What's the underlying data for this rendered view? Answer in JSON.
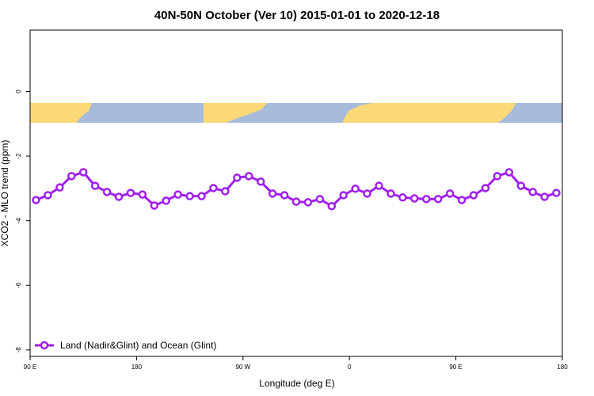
{
  "chart_data": {
    "type": "line",
    "title": "40N-50N October (Ver 10)   2015-01-01 to 2020-12-18",
    "x_label": "Longitude (deg E)",
    "y_label": "XCO2 - MLO trend (ppm)",
    "xlim": [
      90,
      540
    ],
    "xticks": [
      {
        "value": 90,
        "label": "90 E"
      },
      180,
      {
        "value": 270,
        "label": "90 W"
      },
      {
        "value": 360,
        "label": "0"
      },
      {
        "value": 450,
        "label": "90 E"
      },
      {
        "value": 540,
        "label": "180"
      }
    ],
    "ylim": [
      -8.2,
      1.9
    ],
    "yticks": [
      0,
      -2,
      -4,
      -6,
      -8
    ],
    "legend": "bottom-left",
    "x": [
      95,
      105,
      115,
      125,
      135,
      145,
      155,
      165,
      175,
      185,
      195,
      205,
      215,
      225,
      235,
      245,
      255,
      265,
      275,
      285,
      295,
      305,
      315,
      325,
      335,
      345,
      355,
      365,
      375,
      385,
      395,
      405,
      415,
      425,
      435,
      445,
      455,
      465,
      475,
      485,
      495,
      505,
      515,
      525,
      535
    ],
    "series": [
      {
        "name": "Land (Nadir&Glint) and Ocean (Glint)",
        "color": "#a020f0",
        "values": [
          -3.36,
          -3.21,
          -2.97,
          -2.62,
          -2.5,
          -2.92,
          -3.11,
          -3.26,
          -3.14,
          -3.19,
          -3.53,
          -3.38,
          -3.19,
          -3.24,
          -3.24,
          -2.99,
          -3.09,
          -2.67,
          -2.62,
          -2.79,
          -3.16,
          -3.21,
          -3.41,
          -3.43,
          -3.33,
          -3.55,
          -3.21,
          -3.01,
          -3.16,
          -2.92,
          -3.16,
          -3.28,
          -3.31,
          -3.33,
          -3.33,
          -3.16,
          -3.36,
          -3.21,
          -2.99,
          -2.62,
          -2.5,
          -2.92,
          -3.11,
          -3.26,
          -3.14
        ]
      }
    ]
  }
}
